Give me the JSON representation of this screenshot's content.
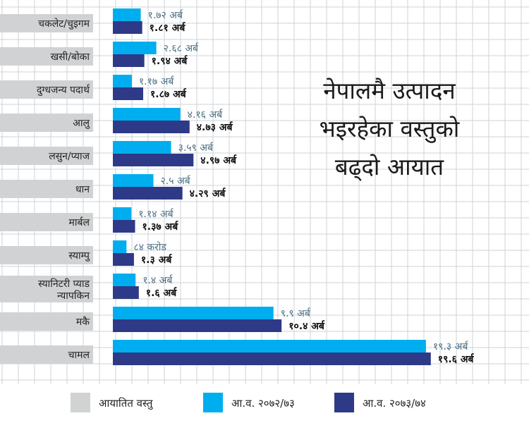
{
  "chart_data": {
    "type": "bar",
    "orientation": "horizontal",
    "title": [
      "नेपालमै उत्पादन",
      "भइरहेका वस्तुको",
      "बढ्दो आयात"
    ],
    "categories": [
      "चकलेट/चुइगम",
      "खसी/बोका",
      "दुग्धजन्य पदार्थ",
      "आलु",
      "लसुन/प्याज",
      "धान",
      "मार्बल",
      "स्याम्पु",
      "स्यानिटरी प्याड न्यापकिन",
      "मकै",
      "चामल"
    ],
    "category_lines": [
      [
        "चकलेट/चुइगम"
      ],
      [
        "खसी/बोका"
      ],
      [
        "दुग्धजन्य पदार्थ"
      ],
      [
        "आलु"
      ],
      [
        "लसुन/प्याज"
      ],
      [
        "धान"
      ],
      [
        "मार्बल"
      ],
      [
        "स्याम्पु"
      ],
      [
        "स्यानिटरी प्याड",
        "न्यापकिन"
      ],
      [
        "मकै"
      ],
      [
        "चामल"
      ]
    ],
    "series": [
      {
        "name": "आ.व. २०७२/७३",
        "color": "#00AEEF",
        "label_color": "#4A6E82",
        "values": [
          1.72,
          2.68,
          1.17,
          4.16,
          3.59,
          2.5,
          1.14,
          0.84,
          1.4,
          9.9,
          19.3
        ],
        "labels": [
          "१.७२ अर्ब",
          "२.६८ अर्ब",
          "१.१७ अर्ब",
          "४.१६ अर्ब",
          "३.५९ अर्ब",
          "२.५ अर्ब",
          "१.१४ अर्ब",
          "८४ करोड",
          "१.४ अर्ब",
          "९.९ अर्ब",
          "१९.३ अर्ब"
        ]
      },
      {
        "name": "आ.व. २०७३/७४",
        "color": "#2E3A87",
        "label_color": "#111111",
        "values": [
          1.81,
          1.94,
          1.87,
          4.73,
          4.97,
          4.29,
          1.37,
          1.3,
          1.6,
          10.4,
          19.6
        ],
        "labels": [
          "१.८१ अर्ब",
          "१.९४ अर्ब",
          "१.८७ अर्ब",
          "४.७३ अर्ब",
          "४.९७ अर्ब",
          "४.२९ अर्ब",
          "१.३७ अर्ब",
          "१.३ अर्ब",
          "१.६ अर्ब",
          "१०.४ अर्ब",
          "१९.६ अर्ब"
        ]
      }
    ],
    "legend": {
      "items": [
        {
          "name": "आयातित वस्तु",
          "color": "#D0D2D3"
        },
        {
          "name": "आ.व. २०७२/७३",
          "color": "#00AEEF"
        },
        {
          "name": "आ.व. २०७३/७४",
          "color": "#2E3A87"
        }
      ],
      "placement": "bottom"
    },
    "xlim": [
      0,
      20
    ],
    "grid": true,
    "category_box_color": "#D0D2D3",
    "grid_color": "#CED3D8"
  }
}
